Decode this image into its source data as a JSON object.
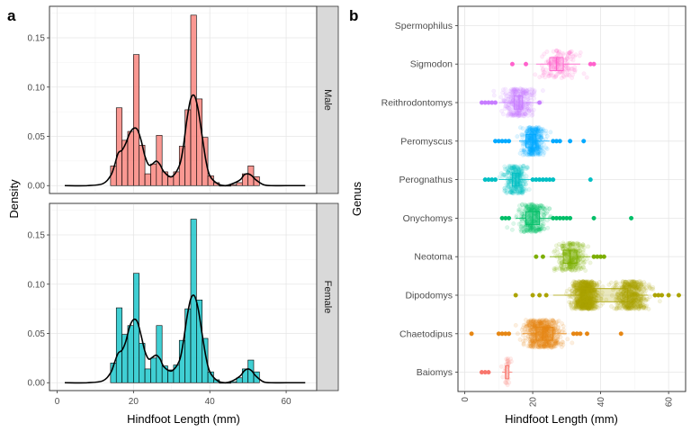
{
  "figure": {
    "panel_a_letter": "a",
    "panel_b_letter": "b"
  },
  "chart_data": [
    {
      "type": "bar",
      "panel": "a",
      "xlabel": "Hindfoot Length (mm)",
      "ylabel": "Density",
      "xlim": [
        -2,
        68
      ],
      "xticks": [
        0,
        20,
        40,
        60
      ],
      "grid": true,
      "facets": [
        {
          "strip_label": "Male",
          "fill_color": "#F8766D",
          "ylim": [
            -0.008,
            0.182
          ],
          "yticks": [
            0.0,
            0.05,
            0.1,
            0.15
          ],
          "histogram": {
            "bin_edges": [
              14,
              15.5,
              17,
              18.5,
              20,
              21.5,
              23,
              24.5,
              26,
              27.5,
              29,
              30.5,
              32,
              33.5,
              35,
              36.5,
              38,
              39.5,
              41,
              42.5,
              44,
              45.5,
              47,
              48.5,
              50,
              51.5,
              53
            ],
            "values": [
              0.02,
              0.079,
              0.046,
              0.055,
              0.133,
              0.041,
              0.012,
              0.022,
              0.051,
              0.014,
              0.009,
              0.014,
              0.04,
              0.077,
              0.173,
              0.088,
              0.049,
              0.01,
              0.003,
              0.0,
              0.0,
              0.001,
              0.003,
              0.012,
              0.02,
              0.009
            ]
          },
          "density": {
            "x": [
              2,
              8,
              12,
              14,
              15,
              16,
              17,
              18,
              19,
              20,
              21,
              22,
              23,
              24,
              25,
              26,
              27,
              28,
              30,
              32,
              33,
              34,
              35,
              36,
              37,
              38,
              39,
              40,
              42,
              44,
              46,
              48,
              49,
              50,
              51,
              52,
              54,
              56,
              60,
              65
            ],
            "y": [
              0,
              0,
              0.002,
              0.01,
              0.02,
              0.033,
              0.036,
              0.043,
              0.053,
              0.058,
              0.057,
              0.046,
              0.03,
              0.021,
              0.022,
              0.025,
              0.021,
              0.014,
              0.009,
              0.02,
              0.038,
              0.067,
              0.088,
              0.091,
              0.076,
              0.05,
              0.025,
              0.01,
              0.002,
              0.0,
              0.002,
              0.006,
              0.011,
              0.012,
              0.01,
              0.006,
              0.001,
              0,
              0,
              0
            ]
          }
        },
        {
          "strip_label": "Female",
          "fill_color": "#00BFC4",
          "ylim": [
            -0.008,
            0.182
          ],
          "yticks": [
            0.0,
            0.05,
            0.1,
            0.15
          ],
          "histogram": {
            "bin_edges": [
              14,
              15.5,
              17,
              18.5,
              20,
              21.5,
              23,
              24.5,
              26,
              27.5,
              29,
              30.5,
              32,
              33.5,
              35,
              36.5,
              38,
              39.5,
              41,
              42.5,
              44,
              45.5,
              47,
              48.5,
              50,
              51.5,
              53
            ],
            "values": [
              0.02,
              0.076,
              0.049,
              0.058,
              0.111,
              0.04,
              0.014,
              0.025,
              0.058,
              0.017,
              0.013,
              0.018,
              0.043,
              0.075,
              0.166,
              0.084,
              0.045,
              0.011,
              0.003,
              0.0,
              0.0,
              0.001,
              0.005,
              0.014,
              0.023,
              0.011
            ]
          },
          "density": {
            "x": [
              2,
              8,
              12,
              14,
              15,
              16,
              17,
              18,
              19,
              20,
              21,
              22,
              23,
              24,
              25,
              26,
              27,
              28,
              30,
              32,
              33,
              34,
              35,
              36,
              37,
              38,
              39,
              40,
              42,
              44,
              46,
              48,
              49,
              50,
              51,
              52,
              54,
              56,
              60,
              65
            ],
            "y": [
              0,
              0,
              0.002,
              0.01,
              0.02,
              0.03,
              0.033,
              0.042,
              0.057,
              0.064,
              0.062,
              0.048,
              0.032,
              0.024,
              0.026,
              0.028,
              0.024,
              0.016,
              0.012,
              0.022,
              0.04,
              0.066,
              0.085,
              0.088,
              0.074,
              0.049,
              0.026,
              0.011,
              0.002,
              0.0,
              0.002,
              0.007,
              0.012,
              0.014,
              0.012,
              0.007,
              0.001,
              0,
              0,
              0
            ]
          }
        }
      ]
    },
    {
      "type": "scatter",
      "panel": "b",
      "xlabel": "Hindfoot Length (mm)",
      "ylabel": "Genus",
      "xlim": [
        -2,
        65
      ],
      "xticks": [
        0,
        20,
        40,
        60
      ],
      "grid": true,
      "categories": [
        "Spermophilus",
        "Sigmodon",
        "Reithrodontomys",
        "Peromyscus",
        "Perognathus",
        "Onychomys",
        "Neotoma",
        "Dipodomys",
        "Chaetodipus",
        "Baiomys"
      ],
      "series": [
        {
          "color": "#FF61CC",
          "point_count": 0,
          "spread": [
            0,
            0
          ],
          "box": {
            "min": 0,
            "q1": 0,
            "median": 0,
            "q3": 0,
            "max": 0
          },
          "clusters": [],
          "outliers": []
        },
        {
          "color": "#FF61CC",
          "point_count": 150,
          "spread": [
            20,
            38
          ],
          "box": {
            "min": 21,
            "q1": 25,
            "median": 27,
            "q3": 29,
            "max": 34
          },
          "clusters": [
            {
              "center": 28,
              "sd": 3.0,
              "n": 150
            }
          ],
          "outliers": [
            14,
            18,
            37,
            38
          ]
        },
        {
          "color": "#C77CFF",
          "point_count": 320,
          "spread": [
            6,
            23
          ],
          "box": {
            "min": 10,
            "q1": 14.5,
            "median": 16,
            "q3": 17,
            "max": 22
          },
          "clusters": [
            {
              "center": 16,
              "sd": 2.2,
              "n": 320
            }
          ],
          "outliers": [
            5,
            6,
            7,
            8,
            9,
            22
          ]
        },
        {
          "color": "#00A9FF",
          "point_count": 360,
          "spread": [
            12,
            30
          ],
          "box": {
            "min": 16,
            "q1": 18,
            "median": 20,
            "q3": 21,
            "max": 25
          },
          "clusters": [
            {
              "center": 20,
              "sd": 1.6,
              "n": 360
            }
          ],
          "outliers": [
            9,
            10,
            11,
            12,
            13,
            26,
            27,
            28,
            31,
            35
          ]
        },
        {
          "color": "#00BFC4",
          "point_count": 300,
          "spread": [
            6,
            26
          ],
          "box": {
            "min": 10,
            "q1": 14,
            "median": 15,
            "q3": 16,
            "max": 20
          },
          "clusters": [
            {
              "center": 15,
              "sd": 1.7,
              "n": 300
            }
          ],
          "outliers": [
            6,
            7,
            8,
            9,
            20,
            21,
            22,
            23,
            24,
            25,
            26,
            37
          ]
        },
        {
          "color": "#00BE67",
          "point_count": 320,
          "spread": [
            12,
            40
          ],
          "box": {
            "min": 15,
            "q1": 18,
            "median": 20,
            "q3": 22,
            "max": 26
          },
          "clusters": [
            {
              "center": 20,
              "sd": 2.0,
              "n": 320
            }
          ],
          "outliers": [
            11,
            12,
            13,
            26,
            27,
            28,
            29,
            30,
            31,
            38,
            49
          ]
        },
        {
          "color": "#7CAE00",
          "point_count": 300,
          "spread": [
            22,
            42
          ],
          "box": {
            "min": 25,
            "q1": 29,
            "median": 31,
            "q3": 33,
            "max": 37
          },
          "clusters": [
            {
              "center": 31.5,
              "sd": 2.0,
              "n": 300
            }
          ],
          "outliers": [
            21,
            23,
            38,
            39,
            40,
            41
          ]
        },
        {
          "color": "#ABA300",
          "point_count": 1400,
          "spread": [
            25,
            63
          ],
          "box": {
            "min": 26,
            "q1": 34,
            "median": 36,
            "q3": 48,
            "max": 54
          },
          "clusters": [
            {
              "center": 35.5,
              "sd": 1.8,
              "n": 850
            },
            {
              "center": 49,
              "sd": 2.2,
              "n": 550
            }
          ],
          "outliers": [
            15,
            20,
            22,
            24,
            56,
            57,
            58,
            60,
            63
          ]
        },
        {
          "color": "#E68613",
          "point_count": 600,
          "spread": [
            14,
            33
          ],
          "box": {
            "min": 17,
            "q1": 21,
            "median": 23,
            "q3": 26,
            "max": 30
          },
          "clusters": [
            {
              "center": 23,
              "sd": 2.6,
              "n": 600
            }
          ],
          "outliers": [
            2,
            10,
            11,
            12,
            13,
            32,
            33,
            34,
            36,
            46
          ]
        },
        {
          "color": "#F8766D",
          "point_count": 30,
          "spread": [
            10,
            14
          ],
          "box": {
            "min": 11,
            "q1": 12,
            "median": 12,
            "q3": 13,
            "max": 14
          },
          "clusters": [
            {
              "center": 12.5,
              "sd": 0.8,
              "n": 30
            }
          ],
          "outliers": [
            5,
            6,
            7
          ]
        }
      ]
    }
  ]
}
